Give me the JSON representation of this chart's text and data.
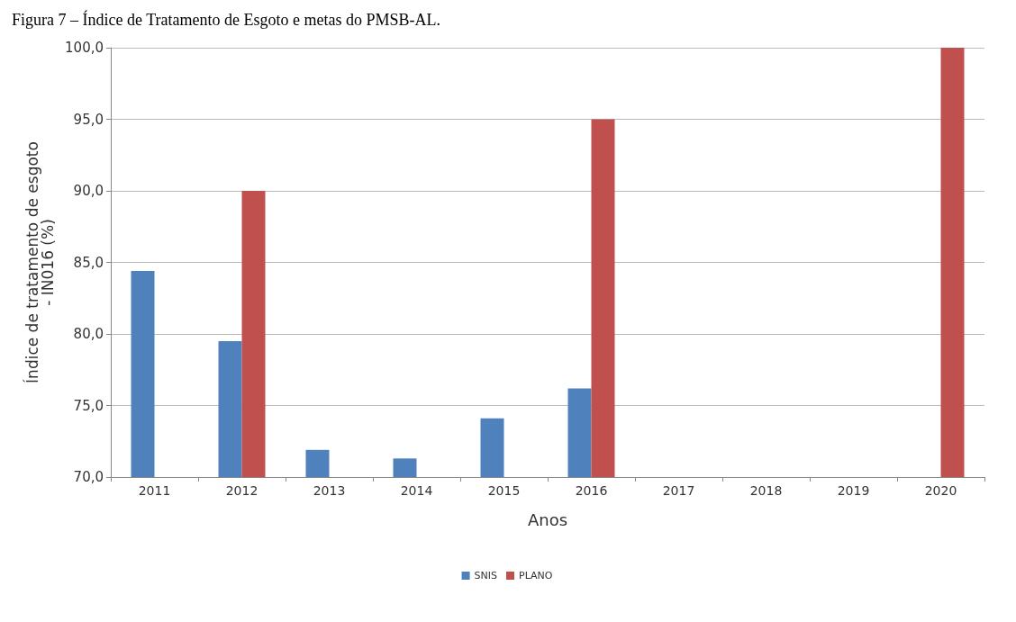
{
  "chart_data": {
    "type": "bar",
    "title": "Figura 7 – Índice de Tratamento de Esgoto e metas do PMSB-AL.",
    "xlabel": "Anos",
    "ylabel": "Índice de tratamento de esgoto\n- IN016 (%)",
    "categories": [
      "2011",
      "2012",
      "2013",
      "2014",
      "2015",
      "2016",
      "2017",
      "2018",
      "2019",
      "2020"
    ],
    "series": [
      {
        "name": "SNIS",
        "color": "#4f81bd",
        "values": [
          84.4,
          79.5,
          71.9,
          71.3,
          74.1,
          76.2,
          null,
          null,
          null,
          null
        ]
      },
      {
        "name": "PLANO",
        "color": "#c0504d",
        "values": [
          null,
          90,
          null,
          null,
          null,
          95,
          null,
          null,
          null,
          100
        ]
      }
    ],
    "ylim": [
      70,
      100
    ],
    "yticks": [
      {
        "value": 70,
        "label": "70,0"
      },
      {
        "value": 75,
        "label": "75,0"
      },
      {
        "value": 80,
        "label": "80,0"
      },
      {
        "value": 85,
        "label": "85,0"
      },
      {
        "value": 90,
        "label": "90,0"
      },
      {
        "value": 95,
        "label": "95,0"
      },
      {
        "value": 100,
        "label": "100,0"
      }
    ],
    "grid": "y",
    "legend": "bottom"
  }
}
